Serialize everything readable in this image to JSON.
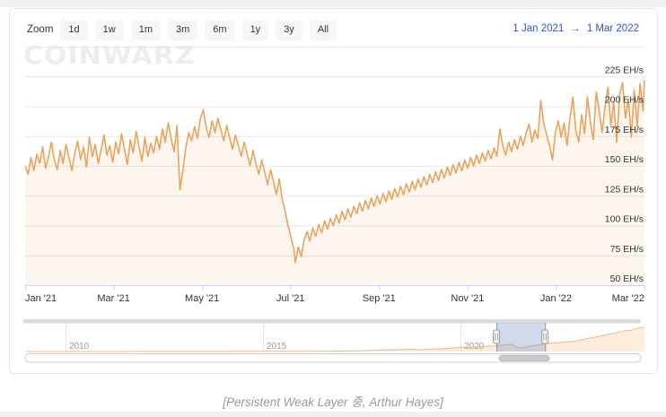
{
  "toolbar": {
    "zoom_label": "Zoom",
    "buttons": [
      "1d",
      "1w",
      "1m",
      "3m",
      "6m",
      "1y",
      "3y",
      "All"
    ],
    "range_from": "1 Jan 2021",
    "range_arrow": "→",
    "range_to": "1 Mar 2022"
  },
  "watermark": "COINWARZ",
  "caption": "[Persistent Weak Layer 중, Arthur Hayes]",
  "colors": {
    "accent_line": "#e9a45c",
    "area_fill": "rgba(236,170,95,0.10)",
    "nav_line": "#ecba88",
    "nav_fill": "rgba(236,170,95,0.22)",
    "selection_fill": "rgba(102,133,194,0.3)",
    "selection_edge": "#8193c6",
    "gridline": "#e7e7e7",
    "axis_line": "#ccd6eb",
    "tick_text": "#333333",
    "year_text": "#999999",
    "range_text": "#3355c4",
    "scroll_thumb": "#c9c9c9"
  },
  "chart_data": {
    "type": "line",
    "unit": "EH/s",
    "x_ticks": [
      "Jan '21",
      "Mar '21",
      "May '21",
      "Jul '21",
      "Sep '21",
      "Nov '21",
      "Jan '22",
      "Mar '22"
    ],
    "y_ticks": [
      50,
      75,
      100,
      125,
      150,
      175,
      200,
      225
    ],
    "y_tick_suffix": " EH/s",
    "ylim": [
      50,
      250
    ],
    "x_range_days": [
      0,
      424
    ],
    "x_start_label": "1 Jan 2021",
    "x_end_label": "1 Mar 2022",
    "grid": true,
    "series": [
      {
        "points": [
          [
            0,
            150
          ],
          [
            2,
            143
          ],
          [
            4,
            157
          ],
          [
            6,
            146
          ],
          [
            8,
            160
          ],
          [
            10,
            152
          ],
          [
            12,
            166
          ],
          [
            14,
            148
          ],
          [
            16,
            158
          ],
          [
            18,
            170
          ],
          [
            20,
            155
          ],
          [
            22,
            147
          ],
          [
            24,
            163
          ],
          [
            26,
            152
          ],
          [
            28,
            168
          ],
          [
            30,
            157
          ],
          [
            32,
            146
          ],
          [
            34,
            161
          ],
          [
            36,
            171
          ],
          [
            38,
            155
          ],
          [
            40,
            166
          ],
          [
            42,
            149
          ],
          [
            44,
            174
          ],
          [
            46,
            158
          ],
          [
            48,
            168
          ],
          [
            50,
            152
          ],
          [
            52,
            163
          ],
          [
            54,
            176
          ],
          [
            56,
            159
          ],
          [
            58,
            167
          ],
          [
            60,
            153
          ],
          [
            62,
            170
          ],
          [
            64,
            160
          ],
          [
            66,
            177
          ],
          [
            68,
            164
          ],
          [
            70,
            151
          ],
          [
            72,
            172
          ],
          [
            74,
            161
          ],
          [
            76,
            179
          ],
          [
            78,
            166
          ],
          [
            80,
            154
          ],
          [
            82,
            174
          ],
          [
            84,
            158
          ],
          [
            86,
            169
          ],
          [
            88,
            161
          ],
          [
            90,
            175
          ],
          [
            92,
            164
          ],
          [
            94,
            181
          ],
          [
            96,
            170
          ],
          [
            98,
            186
          ],
          [
            100,
            173
          ],
          [
            102,
            162
          ],
          [
            104,
            184
          ],
          [
            106,
            130
          ],
          [
            108,
            147
          ],
          [
            110,
            165
          ],
          [
            112,
            178
          ],
          [
            114,
            171
          ],
          [
            116,
            183
          ],
          [
            118,
            173
          ],
          [
            120,
            190
          ],
          [
            122,
            197
          ],
          [
            124,
            182
          ],
          [
            126,
            174
          ],
          [
            128,
            188
          ],
          [
            130,
            178
          ],
          [
            132,
            190
          ],
          [
            134,
            180
          ],
          [
            136,
            171
          ],
          [
            138,
            184
          ],
          [
            140,
            174
          ],
          [
            142,
            164
          ],
          [
            144,
            176
          ],
          [
            146,
            167
          ],
          [
            148,
            158
          ],
          [
            150,
            170
          ],
          [
            152,
            160
          ],
          [
            154,
            150
          ],
          [
            156,
            163
          ],
          [
            158,
            152
          ],
          [
            160,
            143
          ],
          [
            162,
            155
          ],
          [
            164,
            145
          ],
          [
            166,
            134
          ],
          [
            168,
            147
          ],
          [
            170,
            137
          ],
          [
            172,
            126
          ],
          [
            174,
            139
          ],
          [
            176,
            122
          ],
          [
            178,
            112
          ],
          [
            180,
            100
          ],
          [
            182,
            90
          ],
          [
            184,
            80
          ],
          [
            185,
            69
          ],
          [
            187,
            82
          ],
          [
            189,
            74
          ],
          [
            191,
            88
          ],
          [
            193,
            95
          ],
          [
            195,
            87
          ],
          [
            197,
            98
          ],
          [
            199,
            91
          ],
          [
            201,
            101
          ],
          [
            203,
            94
          ],
          [
            205,
            104
          ],
          [
            207,
            97
          ],
          [
            209,
            106
          ],
          [
            211,
            100
          ],
          [
            213,
            109
          ],
          [
            215,
            102
          ],
          [
            217,
            112
          ],
          [
            219,
            105
          ],
          [
            221,
            114
          ],
          [
            223,
            107
          ],
          [
            225,
            116
          ],
          [
            227,
            110
          ],
          [
            229,
            119
          ],
          [
            231,
            112
          ],
          [
            233,
            121
          ],
          [
            235,
            114
          ],
          [
            237,
            123
          ],
          [
            239,
            116
          ],
          [
            241,
            125
          ],
          [
            243,
            118
          ],
          [
            245,
            127
          ],
          [
            247,
            120
          ],
          [
            249,
            129
          ],
          [
            251,
            122
          ],
          [
            253,
            131
          ],
          [
            255,
            124
          ],
          [
            257,
            133
          ],
          [
            259,
            126
          ],
          [
            261,
            135
          ],
          [
            263,
            128
          ],
          [
            265,
            137
          ],
          [
            267,
            130
          ],
          [
            269,
            139
          ],
          [
            271,
            132
          ],
          [
            273,
            141
          ],
          [
            275,
            134
          ],
          [
            277,
            143
          ],
          [
            279,
            136
          ],
          [
            281,
            145
          ],
          [
            283,
            138
          ],
          [
            285,
            147
          ],
          [
            287,
            140
          ],
          [
            289,
            149
          ],
          [
            291,
            142
          ],
          [
            293,
            151
          ],
          [
            295,
            144
          ],
          [
            297,
            153
          ],
          [
            299,
            146
          ],
          [
            301,
            155
          ],
          [
            303,
            148
          ],
          [
            305,
            157
          ],
          [
            307,
            150
          ],
          [
            309,
            159
          ],
          [
            311,
            152
          ],
          [
            313,
            161
          ],
          [
            315,
            154
          ],
          [
            317,
            163
          ],
          [
            319,
            156
          ],
          [
            321,
            165
          ],
          [
            323,
            158
          ],
          [
            325,
            181
          ],
          [
            327,
            167
          ],
          [
            329,
            159
          ],
          [
            331,
            170
          ],
          [
            333,
            162
          ],
          [
            335,
            172
          ],
          [
            337,
            164
          ],
          [
            339,
            175
          ],
          [
            341,
            167
          ],
          [
            343,
            178
          ],
          [
            345,
            185
          ],
          [
            347,
            170
          ],
          [
            349,
            180
          ],
          [
            351,
            173
          ],
          [
            353,
            205
          ],
          [
            355,
            186
          ],
          [
            357,
            176
          ],
          [
            359,
            168
          ],
          [
            361,
            155
          ],
          [
            363,
            178
          ],
          [
            365,
            188
          ],
          [
            367,
            174
          ],
          [
            369,
            186
          ],
          [
            371,
            167
          ],
          [
            373,
            190
          ],
          [
            375,
            208
          ],
          [
            377,
            180
          ],
          [
            379,
            170
          ],
          [
            381,
            193
          ],
          [
            383,
            177
          ],
          [
            385,
            208
          ],
          [
            387,
            186
          ],
          [
            389,
            172
          ],
          [
            391,
            212
          ],
          [
            393,
            196
          ],
          [
            395,
            178
          ],
          [
            397,
            200
          ],
          [
            399,
            216
          ],
          [
            401,
            184
          ],
          [
            403,
            203
          ],
          [
            405,
            170
          ],
          [
            407,
            210
          ],
          [
            409,
            220
          ],
          [
            411,
            190
          ],
          [
            413,
            206
          ],
          [
            415,
            174
          ],
          [
            417,
            214
          ],
          [
            419,
            183
          ],
          [
            421,
            219
          ],
          [
            423,
            196
          ],
          [
            424,
            222
          ]
        ]
      }
    ],
    "navigator": {
      "year_ticks": [
        "2010",
        "2015",
        "2020"
      ],
      "year_tick_values": [
        2010,
        2015,
        2020
      ],
      "selection_from_label": "1 Jan 2021",
      "selection_to_label": "1 Mar 2022",
      "selection_years": [
        2020.91,
        2022.14
      ],
      "points": [
        [
          2009,
          1
        ],
        [
          2010,
          1
        ],
        [
          2011,
          1
        ],
        [
          2012,
          2
        ],
        [
          2013,
          2
        ],
        [
          2014,
          3
        ],
        [
          2015,
          4
        ],
        [
          2016,
          6
        ],
        [
          2017,
          12
        ],
        [
          2017.5,
          20
        ],
        [
          2018,
          38
        ],
        [
          2018.5,
          50
        ],
        [
          2018.8,
          56
        ],
        [
          2019,
          44
        ],
        [
          2019.3,
          58
        ],
        [
          2019.6,
          72
        ],
        [
          2019.8,
          88
        ],
        [
          2020,
          104
        ],
        [
          2020.15,
          96
        ],
        [
          2020.3,
          112
        ],
        [
          2020.5,
          120
        ],
        [
          2020.7,
          130
        ],
        [
          2020.85,
          140
        ],
        [
          2021,
          150
        ],
        [
          2021.15,
          168
        ],
        [
          2021.3,
          178
        ],
        [
          2021.45,
          100
        ],
        [
          2021.55,
          96
        ],
        [
          2021.7,
          120
        ],
        [
          2021.85,
          145
        ],
        [
          2022,
          172
        ],
        [
          2022.15,
          200
        ],
        [
          2022.3,
          205
        ],
        [
          2022.45,
          215
        ],
        [
          2022.6,
          230
        ],
        [
          2022.75,
          245
        ],
        [
          2022.9,
          255
        ],
        [
          2023.05,
          285
        ],
        [
          2023.2,
          320
        ],
        [
          2023.35,
          345
        ],
        [
          2023.5,
          375
        ],
        [
          2023.65,
          410
        ],
        [
          2023.8,
          440
        ],
        [
          2023.9,
          455
        ],
        [
          2024,
          475
        ],
        [
          2024.1,
          505
        ],
        [
          2024.2,
          528
        ],
        [
          2024.3,
          515
        ],
        [
          2024.4,
          555
        ],
        [
          2024.5,
          585
        ],
        [
          2024.58,
          600
        ],
        [
          2024.66,
          580
        ]
      ]
    }
  }
}
